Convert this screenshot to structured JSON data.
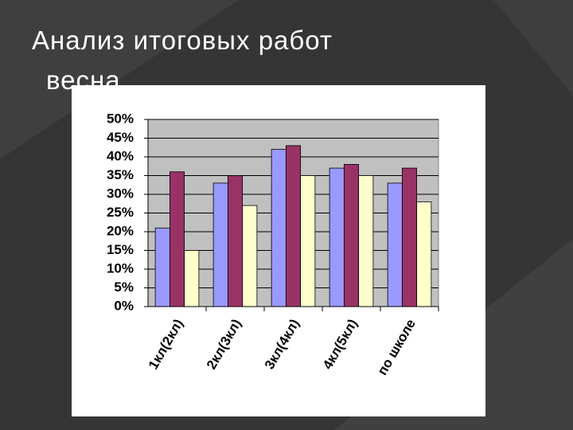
{
  "slide": {
    "title_lines": [
      "Анализ итоговых работ",
      "весна"
    ]
  },
  "chart_data": {
    "type": "bar",
    "categories": [
      "1кл(2кл)",
      "2кл(3кл)",
      "3кл(4кл)",
      "4кл(5кл)",
      "по школе"
    ],
    "series": [
      {
        "color": "#9999ff",
        "values": [
          21,
          33,
          42,
          37,
          33
        ]
      },
      {
        "color": "#993366",
        "values": [
          36,
          35,
          43,
          38,
          37
        ]
      },
      {
        "color": "#ffffcc",
        "values": [
          15,
          27,
          35,
          35,
          28
        ]
      }
    ],
    "ylim": [
      0,
      50
    ],
    "yticks": [
      {
        "value": 0,
        "label": "0%"
      },
      {
        "value": 5,
        "label": "5%"
      },
      {
        "value": 10,
        "label": "10%"
      },
      {
        "value": 15,
        "label": "15%"
      },
      {
        "value": 20,
        "label": "20%"
      },
      {
        "value": 25,
        "label": "25%"
      },
      {
        "value": 30,
        "label": "30%"
      },
      {
        "value": 35,
        "label": "35%"
      },
      {
        "value": 40,
        "label": "40%"
      },
      {
        "value": 45,
        "label": "45%"
      },
      {
        "value": 50,
        "label": "50%"
      }
    ],
    "grid": true,
    "plot_background": "#c0c0c0"
  }
}
